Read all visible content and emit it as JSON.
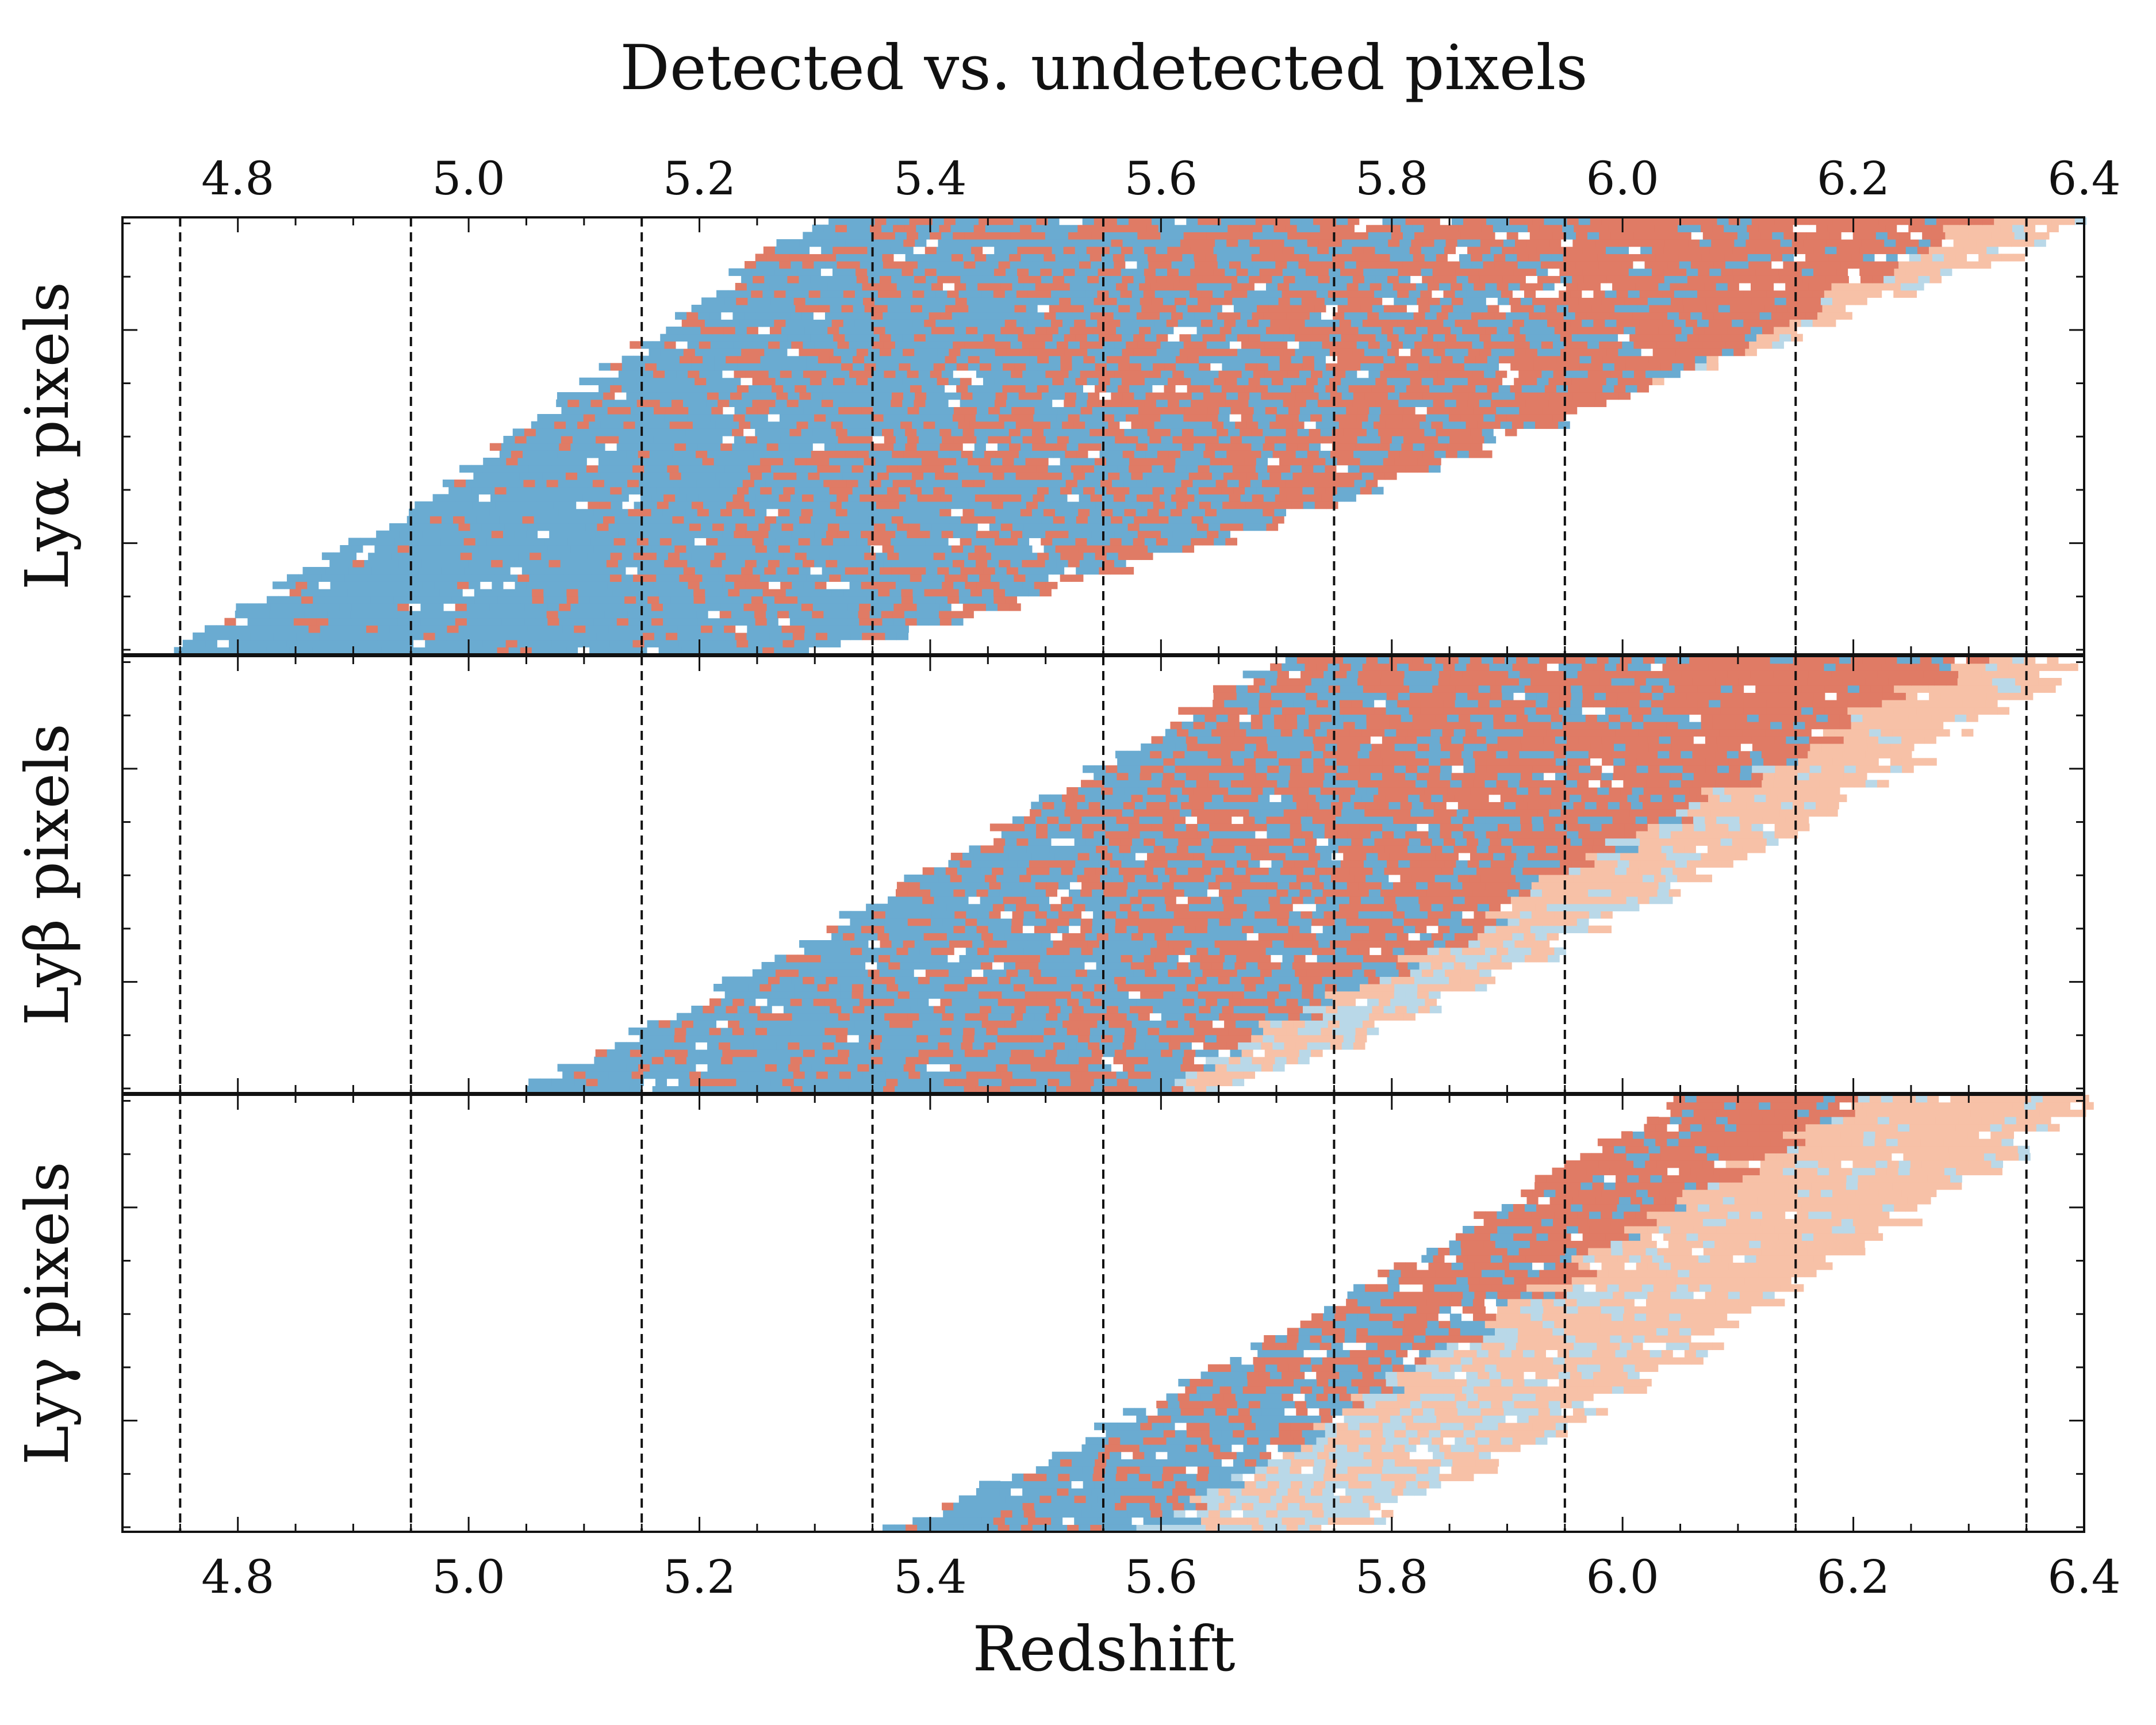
{
  "chart_data": {
    "type": "heatmap",
    "title": "Detected vs. undetected pixels",
    "xlabel": "Redshift",
    "xlim": [
      4.7,
      6.4
    ],
    "xticks": [
      "4.8",
      "5.0",
      "5.2",
      "5.4",
      "5.6",
      "5.8",
      "6.0",
      "6.2",
      "6.4"
    ],
    "xtick_values": [
      4.8,
      5.0,
      5.2,
      5.4,
      5.6,
      5.8,
      6.0,
      6.2,
      6.4
    ],
    "vlines": [
      4.75,
      4.95,
      5.15,
      5.35,
      5.55,
      5.75,
      5.95,
      6.15,
      6.35
    ],
    "colors": {
      "detected_dark": "#e07b65",
      "undetected_dark": "#6aabd1",
      "detected_light": "#f7c1a7",
      "undetected_light": "#b9d8e8",
      "gap": "#ffffff"
    },
    "panels": [
      {
        "ylabel": "Lyα pixels",
        "rows": 60,
        "start_min": 4.74,
        "start_max": 5.3,
        "end_min": 5.3,
        "end_max": 6.4,
        "fade_lo": 5.6,
        "fade_hi": 6.3,
        "red_lo": 5.0,
        "red_hi": 6.2
      },
      {
        "ylabel": "Lyβ pixels",
        "rows": 60,
        "start_min": 5.04,
        "start_max": 5.7,
        "end_min": 5.65,
        "end_max": 6.4,
        "fade_lo": 5.6,
        "fade_hi": 6.3,
        "red_lo": 5.1,
        "red_hi": 6.2
      },
      {
        "ylabel": "Lyγ pixels",
        "rows": 60,
        "start_min": 5.37,
        "start_max": 6.05,
        "end_min": 5.75,
        "end_max": 6.4,
        "fade_lo": 5.6,
        "fade_hi": 6.2,
        "red_lo": 5.4,
        "red_hi": 6.1
      }
    ]
  }
}
